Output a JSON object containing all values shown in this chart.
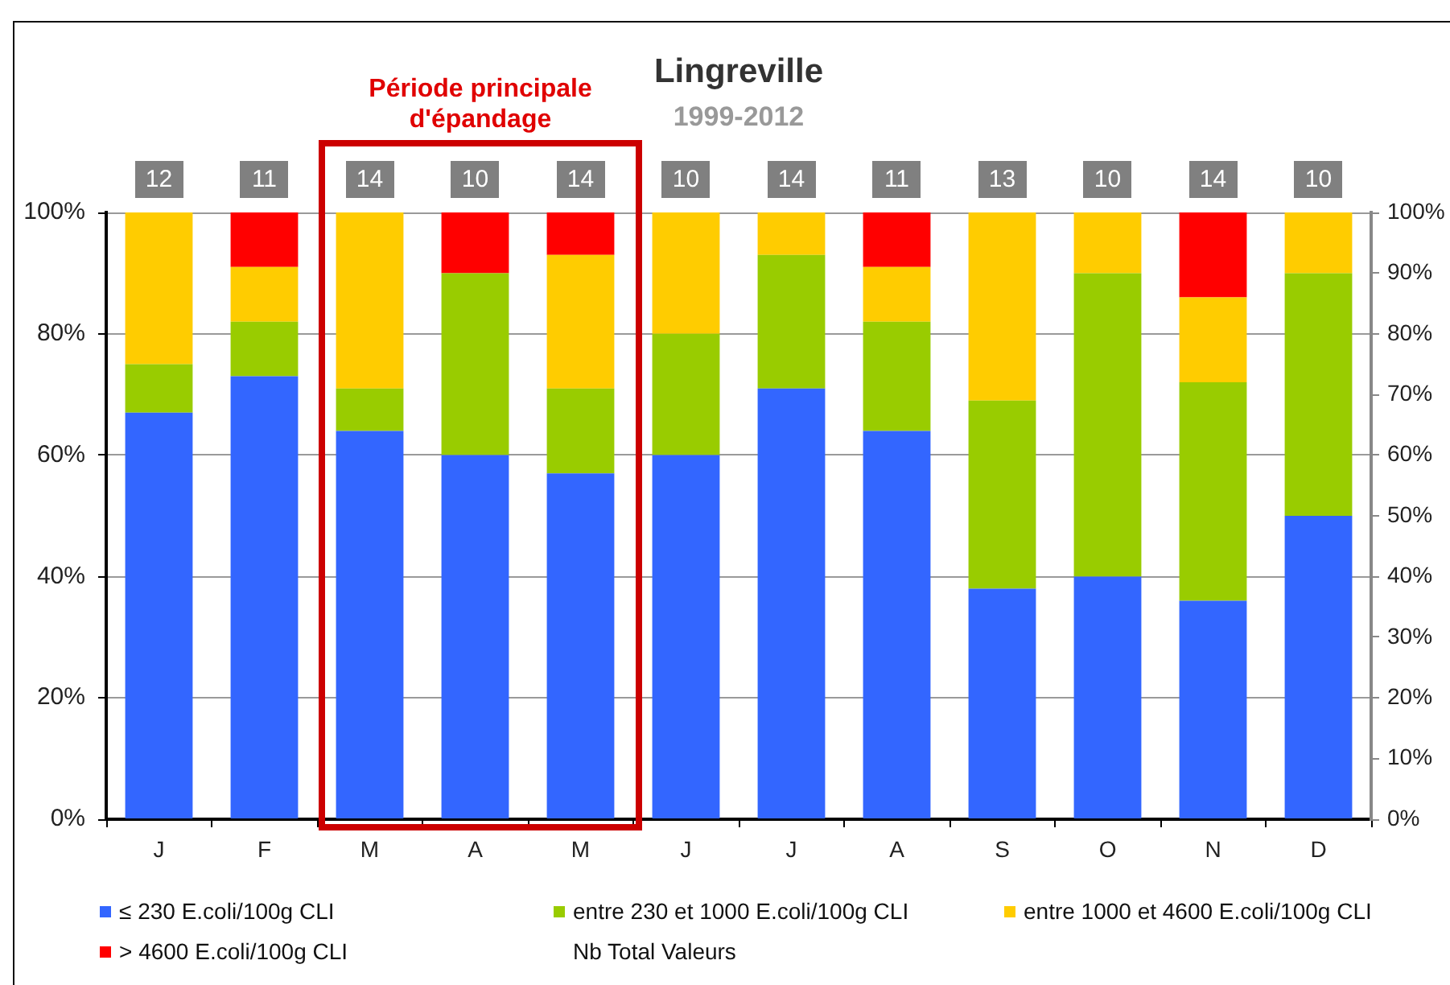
{
  "chart_data": {
    "type": "bar",
    "title": "Lingreville",
    "subtitle": "1999-2012",
    "categories": [
      "J",
      "F",
      "M",
      "A",
      "M",
      "J",
      "J",
      "A",
      "S",
      "O",
      "N",
      "D"
    ],
    "series": [
      {
        "name": "≤ 230 E.coli/100g CLI",
        "color": "#3366ff",
        "values": [
          67,
          73,
          64,
          60,
          57,
          60,
          71,
          64,
          38,
          40,
          36,
          50
        ]
      },
      {
        "name": "entre 230 et 1000 E.coli/100g CLI",
        "color": "#99cc00",
        "values": [
          8,
          9,
          7,
          30,
          14,
          20,
          22,
          18,
          31,
          50,
          36,
          40
        ]
      },
      {
        "name": "entre 1000 et 4600 E.coli/100g CLI",
        "color": "#ffcc00",
        "values": [
          25,
          9,
          29,
          null,
          22,
          20,
          7,
          9,
          31,
          10,
          14,
          10
        ]
      },
      {
        "name": "> 4600 E.coli/100g CLI",
        "color": "#ff0000",
        "values": [
          null,
          9,
          null,
          10,
          7,
          null,
          null,
          9,
          null,
          null,
          14,
          null
        ]
      }
    ],
    "stacked": true,
    "ylim": [
      0,
      100
    ],
    "yticks": [
      {
        "value": 0,
        "label": "0%"
      },
      {
        "value": 20,
        "label": "20%"
      },
      {
        "value": 40,
        "label": "40%"
      },
      {
        "value": 60,
        "label": "60%"
      },
      {
        "value": 80,
        "label": "80%"
      },
      {
        "value": 100,
        "label": "100%"
      }
    ],
    "y2lim": [
      0,
      100
    ],
    "y2ticks": [
      {
        "value": 0,
        "label": "0%"
      },
      {
        "value": 10,
        "label": "10%"
      },
      {
        "value": 20,
        "label": "20%"
      },
      {
        "value": 30,
        "label": "30%"
      },
      {
        "value": 40,
        "label": "40%"
      },
      {
        "value": 50,
        "label": "50%"
      },
      {
        "value": 60,
        "label": "60%"
      },
      {
        "value": 70,
        "label": "70%"
      },
      {
        "value": 80,
        "label": "80%"
      },
      {
        "value": 90,
        "label": "90%"
      },
      {
        "value": 100,
        "label": "100%"
      }
    ],
    "annotations": [
      "Période principale d'épandage",
      "12",
      "11",
      "14",
      "10",
      "14",
      "10",
      "14",
      "11",
      "13",
      "10",
      "14",
      "10",
      "Nb Total Valeurs"
    ],
    "grid": "y",
    "legend": "bottom"
  }
}
